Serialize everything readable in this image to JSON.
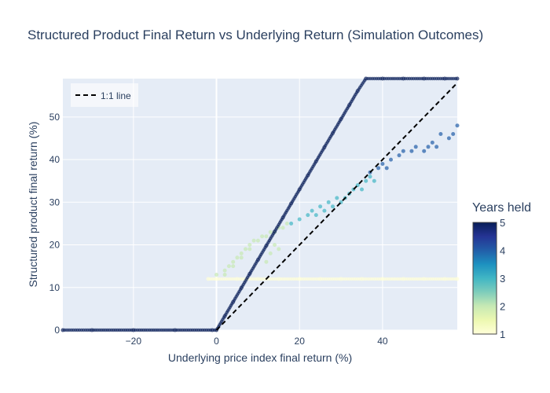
{
  "chart_data": {
    "type": "scatter",
    "title": "Structured Product Final Return vs Underlying Return (Simulation Outcomes)",
    "xlabel": "Underlying price index final return (%)",
    "ylabel": "Structured product final return (%)",
    "xlim": [
      -37,
      58
    ],
    "ylim": [
      0,
      59
    ],
    "x_ticks": [
      -20,
      0,
      20,
      40
    ],
    "y_ticks": [
      0,
      10,
      20,
      30,
      40,
      50
    ],
    "grid": true,
    "legend": {
      "placement": "top-left",
      "entries": [
        {
          "label": "1:1 line",
          "style": "dashed-black"
        }
      ]
    },
    "colorbar": {
      "title": "Years held",
      "min": 1,
      "max": 5,
      "ticks": [
        1,
        2,
        3,
        4,
        5
      ],
      "colorscale": "YlGnBu"
    },
    "reference_line": {
      "name": "1:1 line",
      "x": [
        0,
        58
      ],
      "y": [
        0,
        58
      ]
    },
    "series": [
      {
        "years": 5,
        "description_points": [
          {
            "x": -37,
            "y": 0
          },
          {
            "x": -30,
            "y": 0
          },
          {
            "x": -20,
            "y": 0
          },
          {
            "x": -10,
            "y": 0
          },
          {
            "x": -1,
            "y": 0
          },
          {
            "x": 0,
            "y": 0
          },
          {
            "x": 2,
            "y": 3.3
          },
          {
            "x": 4,
            "y": 6.6
          },
          {
            "x": 6,
            "y": 9.9
          },
          {
            "x": 8,
            "y": 13.2
          },
          {
            "x": 10,
            "y": 16.5
          },
          {
            "x": 12,
            "y": 19.8
          },
          {
            "x": 14,
            "y": 23.1
          },
          {
            "x": 16,
            "y": 26.4
          },
          {
            "x": 18,
            "y": 29.7
          },
          {
            "x": 20,
            "y": 33.0
          },
          {
            "x": 22,
            "y": 36.3
          },
          {
            "x": 24,
            "y": 39.6
          },
          {
            "x": 26,
            "y": 42.9
          },
          {
            "x": 28,
            "y": 46.2
          },
          {
            "x": 30,
            "y": 49.5
          },
          {
            "x": 32,
            "y": 52.8
          },
          {
            "x": 34,
            "y": 56.1
          },
          {
            "x": 36,
            "y": 59.0
          },
          {
            "x": 40,
            "y": 59.0
          },
          {
            "x": 45,
            "y": 59.0
          },
          {
            "x": 50,
            "y": 59.0
          },
          {
            "x": 55,
            "y": 59.0
          },
          {
            "x": 58,
            "y": 59.0
          }
        ]
      },
      {
        "years": 4,
        "description_points": [
          {
            "x": 37,
            "y": 37
          },
          {
            "x": 39,
            "y": 38
          },
          {
            "x": 40,
            "y": 39
          },
          {
            "x": 41,
            "y": 38
          },
          {
            "x": 42,
            "y": 40
          },
          {
            "x": 44,
            "y": 41
          },
          {
            "x": 45,
            "y": 42
          },
          {
            "x": 47,
            "y": 42
          },
          {
            "x": 48,
            "y": 43
          },
          {
            "x": 50,
            "y": 42
          },
          {
            "x": 51,
            "y": 43
          },
          {
            "x": 52,
            "y": 44
          },
          {
            "x": 53,
            "y": 43
          },
          {
            "x": 54,
            "y": 46
          },
          {
            "x": 56,
            "y": 45
          },
          {
            "x": 57,
            "y": 46
          },
          {
            "x": 58,
            "y": 48
          }
        ]
      },
      {
        "years": 3,
        "description_points": [
          {
            "x": 18,
            "y": 25
          },
          {
            "x": 20,
            "y": 26
          },
          {
            "x": 22,
            "y": 27
          },
          {
            "x": 23,
            "y": 28
          },
          {
            "x": 24,
            "y": 27
          },
          {
            "x": 25,
            "y": 29
          },
          {
            "x": 26,
            "y": 28
          },
          {
            "x": 27,
            "y": 30
          },
          {
            "x": 28,
            "y": 29
          },
          {
            "x": 29,
            "y": 31
          },
          {
            "x": 30,
            "y": 30
          },
          {
            "x": 31,
            "y": 31
          },
          {
            "x": 32,
            "y": 32
          },
          {
            "x": 33,
            "y": 33
          },
          {
            "x": 34,
            "y": 34
          },
          {
            "x": 35,
            "y": 33
          },
          {
            "x": 36,
            "y": 35
          },
          {
            "x": 37,
            "y": 36
          },
          {
            "x": 38,
            "y": 35
          }
        ]
      },
      {
        "years": 2,
        "description_points": [
          {
            "x": 0,
            "y": 13
          },
          {
            "x": 2,
            "y": 13
          },
          {
            "x": 2,
            "y": 14
          },
          {
            "x": 3,
            "y": 15
          },
          {
            "x": 4,
            "y": 15
          },
          {
            "x": 4,
            "y": 16
          },
          {
            "x": 5,
            "y": 17
          },
          {
            "x": 6,
            "y": 17
          },
          {
            "x": 6,
            "y": 18
          },
          {
            "x": 7,
            "y": 19
          },
          {
            "x": 8,
            "y": 19
          },
          {
            "x": 8,
            "y": 20
          },
          {
            "x": 9,
            "y": 21
          },
          {
            "x": 10,
            "y": 21
          },
          {
            "x": 11,
            "y": 22
          },
          {
            "x": 12,
            "y": 22
          },
          {
            "x": 13,
            "y": 23
          },
          {
            "x": 14,
            "y": 23
          },
          {
            "x": 15,
            "y": 24
          },
          {
            "x": 16,
            "y": 24
          },
          {
            "x": 17,
            "y": 25
          },
          {
            "x": 14,
            "y": 20
          },
          {
            "x": 13,
            "y": 18
          },
          {
            "x": 12,
            "y": 16
          },
          {
            "x": 15,
            "y": 19
          }
        ]
      },
      {
        "years": 1,
        "description_points": [
          {
            "x": -2,
            "y": 12
          },
          {
            "x": 0,
            "y": 12
          },
          {
            "x": 5,
            "y": 12
          },
          {
            "x": 10,
            "y": 12
          },
          {
            "x": 15,
            "y": 12
          },
          {
            "x": 20,
            "y": 12
          },
          {
            "x": 25,
            "y": 12
          },
          {
            "x": 30,
            "y": 12
          },
          {
            "x": 35,
            "y": 12
          },
          {
            "x": 40,
            "y": 12
          },
          {
            "x": 45,
            "y": 12
          },
          {
            "x": 50,
            "y": 12
          },
          {
            "x": 55,
            "y": 12
          },
          {
            "x": 58,
            "y": 12
          }
        ]
      }
    ]
  }
}
